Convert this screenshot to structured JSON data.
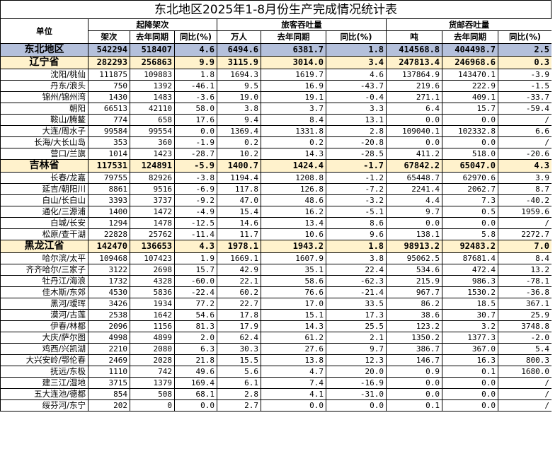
{
  "title": "东北地区2025年1-8月份生产完成情况统计表",
  "header": {
    "unit": "单位",
    "groups": [
      "起降架次",
      "旅客吞吐量",
      "货邮吞吐量"
    ],
    "sub": [
      "架次",
      "去年同期",
      "同比(%)",
      "万人",
      "去年同期",
      "同比(%)",
      "吨",
      "去年同期",
      "同比(%)"
    ]
  },
  "rows": [
    {
      "type": "region",
      "name": "东北地区",
      "v": [
        "542294",
        "518407",
        "4.6",
        "6494.6",
        "6381.7",
        "1.8",
        "414568.8",
        "404498.7",
        "2.5"
      ]
    },
    {
      "type": "prov",
      "name": "辽宁省",
      "v": [
        "282293",
        "256863",
        "9.9",
        "3115.9",
        "3014.0",
        "3.4",
        "247813.4",
        "246968.6",
        "0.3"
      ]
    },
    {
      "type": "city",
      "name": "沈阳/桃仙",
      "v": [
        "111875",
        "109883",
        "1.8",
        "1694.3",
        "1619.7",
        "4.6",
        "137864.9",
        "143470.1",
        "-3.9"
      ]
    },
    {
      "type": "city",
      "name": "丹东/浪头",
      "v": [
        "750",
        "1392",
        "-46.1",
        "9.5",
        "16.9",
        "-43.7",
        "219.6",
        "222.9",
        "-1.5"
      ]
    },
    {
      "type": "city",
      "name": "锦州/锦州湾",
      "v": [
        "1430",
        "1483",
        "-3.6",
        "19.0",
        "19.1",
        "-0.4",
        "271.1",
        "409.1",
        "-33.7"
      ]
    },
    {
      "type": "city",
      "name": "朝阳",
      "v": [
        "66513",
        "42110",
        "58.0",
        "3.8",
        "3.7",
        "3.3",
        "6.4",
        "15.7",
        "-59.4"
      ]
    },
    {
      "type": "city",
      "name": "鞍山/腾鳌",
      "v": [
        "774",
        "658",
        "17.6",
        "9.4",
        "8.4",
        "13.1",
        "0.0",
        "0.0",
        "/"
      ]
    },
    {
      "type": "city",
      "name": "大连/周水子",
      "v": [
        "99584",
        "99554",
        "0.0",
        "1369.4",
        "1331.8",
        "2.8",
        "109040.1",
        "102332.8",
        "6.6"
      ]
    },
    {
      "type": "city",
      "name": "长海/大长山岛",
      "v": [
        "353",
        "360",
        "-1.9",
        "0.2",
        "0.2",
        "-20.8",
        "0.0",
        "0.0",
        "/"
      ]
    },
    {
      "type": "city",
      "name": "营口/兰旗",
      "v": [
        "1014",
        "1423",
        "-28.7",
        "10.2",
        "14.3",
        "-28.5",
        "411.2",
        "518.0",
        "-20.6"
      ]
    },
    {
      "type": "prov",
      "name": "吉林省",
      "v": [
        "117531",
        "124891",
        "-5.9",
        "1400.7",
        "1424.4",
        "-1.7",
        "67842.2",
        "65047.0",
        "4.3"
      ]
    },
    {
      "type": "city",
      "name": "长春/龙嘉",
      "v": [
        "79755",
        "82926",
        "-3.8",
        "1194.4",
        "1208.8",
        "-1.2",
        "65448.7",
        "62970.6",
        "3.9"
      ]
    },
    {
      "type": "city",
      "name": "延吉/朝阳川",
      "v": [
        "8861",
        "9516",
        "-6.9",
        "117.8",
        "126.8",
        "-7.2",
        "2241.4",
        "2062.7",
        "8.7"
      ]
    },
    {
      "type": "city",
      "name": "白山/长白山",
      "v": [
        "3393",
        "3737",
        "-9.2",
        "47.0",
        "48.6",
        "-3.2",
        "4.4",
        "7.3",
        "-40.2"
      ]
    },
    {
      "type": "city",
      "name": "通化/三源浦",
      "v": [
        "1400",
        "1472",
        "-4.9",
        "15.4",
        "16.2",
        "-5.1",
        "9.7",
        "0.5",
        "1959.6"
      ]
    },
    {
      "type": "city",
      "name": "白城/长安",
      "v": [
        "1294",
        "1478",
        "-12.5",
        "14.6",
        "13.4",
        "8.6",
        "0.0",
        "0.0",
        "/"
      ]
    },
    {
      "type": "city",
      "name": "松原/查干湖",
      "v": [
        "22828",
        "25762",
        "-11.4",
        "11.7",
        "10.6",
        "9.6",
        "138.1",
        "5.8",
        "2272.7"
      ]
    },
    {
      "type": "prov",
      "name": "黑龙江省",
      "v": [
        "142470",
        "136653",
        "4.3",
        "1978.1",
        "1943.2",
        "1.8",
        "98913.2",
        "92483.2",
        "7.0"
      ]
    },
    {
      "type": "city",
      "name": "哈尔滨/太平",
      "v": [
        "109468",
        "107423",
        "1.9",
        "1669.1",
        "1607.9",
        "3.8",
        "95062.5",
        "87681.4",
        "8.4"
      ]
    },
    {
      "type": "city",
      "name": "齐齐哈尔/三家子",
      "v": [
        "3122",
        "2698",
        "15.7",
        "42.9",
        "35.1",
        "22.4",
        "534.6",
        "472.4",
        "13.2"
      ]
    },
    {
      "type": "city",
      "name": "牡丹江/海浪",
      "v": [
        "1732",
        "4328",
        "-60.0",
        "22.1",
        "58.6",
        "-62.3",
        "215.9",
        "986.3",
        "-78.1"
      ]
    },
    {
      "type": "city",
      "name": "佳木斯/东郊",
      "v": [
        "4530",
        "5836",
        "-22.4",
        "60.2",
        "76.6",
        "-21.4",
        "967.7",
        "1530.2",
        "-36.8"
      ]
    },
    {
      "type": "city",
      "name": "黑河/瑷珲",
      "v": [
        "3426",
        "1934",
        "77.2",
        "22.7",
        "17.0",
        "33.5",
        "86.2",
        "18.5",
        "367.1"
      ]
    },
    {
      "type": "city",
      "name": "漠河/古莲",
      "v": [
        "2538",
        "1642",
        "54.6",
        "17.8",
        "15.1",
        "17.3",
        "38.6",
        "30.7",
        "25.9"
      ]
    },
    {
      "type": "city",
      "name": "伊春/林都",
      "v": [
        "2096",
        "1156",
        "81.3",
        "17.9",
        "14.3",
        "25.5",
        "123.2",
        "3.2",
        "3748.8"
      ]
    },
    {
      "type": "city",
      "name": "大庆/萨尔图",
      "v": [
        "4998",
        "4899",
        "2.0",
        "62.4",
        "61.2",
        "2.1",
        "1350.2",
        "1377.3",
        "-2.0"
      ]
    },
    {
      "type": "city",
      "name": "鸡西/兴凯湖",
      "v": [
        "2210",
        "2080",
        "6.3",
        "30.3",
        "27.6",
        "9.7",
        "386.7",
        "367.0",
        "5.4"
      ]
    },
    {
      "type": "city",
      "name": "大兴安岭/鄂伦春",
      "v": [
        "2469",
        "2028",
        "21.8",
        "15.5",
        "13.8",
        "12.3",
        "146.7",
        "16.3",
        "800.3"
      ]
    },
    {
      "type": "city",
      "name": "抚远/东极",
      "v": [
        "1110",
        "742",
        "49.6",
        "5.6",
        "4.7",
        "20.0",
        "0.9",
        "0.1",
        "1680.0"
      ]
    },
    {
      "type": "city",
      "name": "建三江/湿地",
      "v": [
        "3715",
        "1379",
        "169.4",
        "6.1",
        "7.4",
        "-16.9",
        "0.0",
        "0.0",
        "/"
      ]
    },
    {
      "type": "city",
      "name": "五大连池/德都",
      "v": [
        "854",
        "508",
        "68.1",
        "2.8",
        "4.1",
        "-31.0",
        "0.0",
        "0.0",
        "/"
      ]
    },
    {
      "type": "city",
      "name": "绥芬河/东宁",
      "v": [
        "202",
        "0",
        "0.0",
        "2.7",
        "0.0",
        "0.0",
        "0.1",
        "0.0",
        "/"
      ]
    }
  ]
}
